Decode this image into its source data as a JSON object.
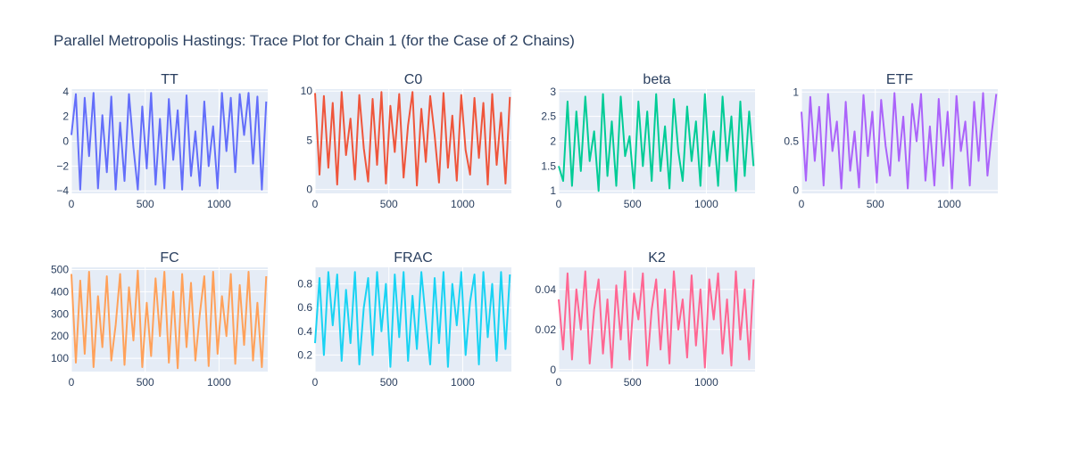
{
  "title": "Parallel Metropolis Hastings: Trace Plot for Chain 1 (for the Case of 2 Chains)",
  "chart_data": [
    {
      "type": "line",
      "title": "TT",
      "color": "#636efa",
      "xlim": [
        0,
        1330
      ],
      "ylim": [
        -4.2,
        4.2
      ],
      "xticks": [
        0,
        500,
        1000
      ],
      "xtick_labels": [
        "0",
        "500",
        "1000"
      ],
      "yticks": [
        -4,
        -2,
        0,
        2,
        4
      ],
      "ytick_labels": [
        "−4",
        "−2",
        "0",
        "2",
        "4"
      ],
      "x": [
        0,
        30,
        60,
        90,
        120,
        150,
        180,
        210,
        240,
        270,
        300,
        330,
        360,
        390,
        420,
        450,
        480,
        510,
        540,
        570,
        600,
        630,
        660,
        690,
        720,
        750,
        780,
        810,
        840,
        870,
        900,
        930,
        960,
        990,
        1020,
        1050,
        1080,
        1110,
        1140,
        1170,
        1200,
        1230,
        1260,
        1290,
        1320
      ],
      "y": [
        0.5,
        3.8,
        -3.9,
        3.5,
        -1.2,
        3.9,
        -3.8,
        2.1,
        -2.5,
        3.6,
        -3.9,
        1.5,
        -3.2,
        3.8,
        -0.5,
        -3.9,
        2.8,
        -2.2,
        3.9,
        -3.5,
        1.8,
        -3.8,
        3.4,
        -1.5,
        2.5,
        -3.9,
        3.7,
        -2.8,
        0.8,
        -3.6,
        3.2,
        -2.0,
        1.2,
        -3.8,
        3.9,
        -0.8,
        3.5,
        -2.5,
        3.8,
        0.5,
        3.9,
        -1.8,
        3.6,
        -3.9,
        3.2
      ]
    },
    {
      "type": "line",
      "title": "C0",
      "color": "#ef553b",
      "xlim": [
        0,
        1330
      ],
      "ylim": [
        -0.4,
        10.2
      ],
      "xticks": [
        0,
        500,
        1000
      ],
      "xtick_labels": [
        "0",
        "500",
        "1000"
      ],
      "yticks": [
        0,
        5,
        10
      ],
      "ytick_labels": [
        "0",
        "5",
        "10"
      ],
      "x": [
        0,
        30,
        60,
        90,
        120,
        150,
        180,
        210,
        240,
        270,
        300,
        330,
        360,
        390,
        420,
        450,
        480,
        510,
        540,
        570,
        600,
        630,
        660,
        690,
        720,
        750,
        780,
        810,
        840,
        870,
        900,
        930,
        960,
        990,
        1020,
        1050,
        1080,
        1110,
        1140,
        1170,
        1200,
        1230,
        1260,
        1290,
        1320
      ],
      "y": [
        9.8,
        1.5,
        9.5,
        2.2,
        8.8,
        0.5,
        9.9,
        3.5,
        7.2,
        1.0,
        9.6,
        4.2,
        0.8,
        9.2,
        2.5,
        9.9,
        0.6,
        8.5,
        3.8,
        9.7,
        1.2,
        6.5,
        9.9,
        0.4,
        8.2,
        2.8,
        9.5,
        5.5,
        0.7,
        9.8,
        2.2,
        7.5,
        0.9,
        9.6,
        4.0,
        1.5,
        9.3,
        3.2,
        8.8,
        0.5,
        9.7,
        2.5,
        7.8,
        0.6,
        9.4
      ]
    },
    {
      "type": "line",
      "title": "beta",
      "color": "#00cc96",
      "xlim": [
        0,
        1330
      ],
      "ylim": [
        0.95,
        3.05
      ],
      "xticks": [
        0,
        500,
        1000
      ],
      "xtick_labels": [
        "0",
        "500",
        "1000"
      ],
      "yticks": [
        1,
        1.5,
        2,
        2.5,
        3
      ],
      "ytick_labels": [
        "1",
        "1.5",
        "2",
        "2.5",
        "3"
      ],
      "x": [
        0,
        30,
        60,
        90,
        120,
        150,
        180,
        210,
        240,
        270,
        300,
        330,
        360,
        390,
        420,
        450,
        480,
        510,
        540,
        570,
        600,
        630,
        660,
        690,
        720,
        750,
        780,
        810,
        840,
        870,
        900,
        930,
        960,
        990,
        1020,
        1050,
        1080,
        1110,
        1140,
        1170,
        1200,
        1230,
        1260,
        1290,
        1320
      ],
      "y": [
        1.5,
        1.2,
        2.8,
        1.1,
        2.6,
        1.4,
        2.9,
        1.6,
        2.2,
        1.0,
        2.95,
        1.3,
        2.4,
        1.1,
        2.9,
        1.7,
        2.1,
        1.05,
        2.8,
        1.5,
        2.6,
        1.2,
        2.95,
        1.4,
        2.3,
        1.05,
        2.85,
        1.8,
        1.2,
        2.7,
        1.6,
        2.4,
        1.1,
        2.95,
        1.5,
        2.2,
        1.1,
        2.9,
        1.6,
        2.5,
        1.0,
        2.8,
        1.3,
        2.6,
        1.5
      ]
    },
    {
      "type": "line",
      "title": "ETF",
      "color": "#ab63fa",
      "xlim": [
        0,
        1330
      ],
      "ylim": [
        -0.03,
        1.03
      ],
      "xticks": [
        0,
        500,
        1000
      ],
      "xtick_labels": [
        "0",
        "500",
        "1000"
      ],
      "yticks": [
        0,
        0.5,
        1
      ],
      "ytick_labels": [
        "0",
        "0.5",
        "1"
      ],
      "x": [
        0,
        30,
        60,
        90,
        120,
        150,
        180,
        210,
        240,
        270,
        300,
        330,
        360,
        390,
        420,
        450,
        480,
        510,
        540,
        570,
        600,
        630,
        660,
        690,
        720,
        750,
        780,
        810,
        840,
        870,
        900,
        930,
        960,
        990,
        1020,
        1050,
        1080,
        1110,
        1140,
        1170,
        1200,
        1230,
        1260,
        1290,
        1320
      ],
      "y": [
        0.8,
        0.1,
        0.95,
        0.3,
        0.85,
        0.05,
        0.98,
        0.4,
        0.7,
        0.02,
        0.9,
        0.2,
        0.6,
        0.03,
        0.97,
        0.35,
        0.8,
        0.08,
        0.92,
        0.45,
        0.15,
        0.99,
        0.3,
        0.75,
        0.02,
        0.88,
        0.5,
        0.98,
        0.1,
        0.65,
        0.05,
        0.93,
        0.25,
        0.8,
        0.02,
        0.96,
        0.4,
        0.7,
        0.05,
        0.9,
        0.3,
        0.99,
        0.15,
        0.6,
        0.98
      ]
    },
    {
      "type": "line",
      "title": "FC",
      "color": "#ffa15a",
      "xlim": [
        0,
        1330
      ],
      "ylim": [
        40,
        510
      ],
      "xticks": [
        0,
        500,
        1000
      ],
      "xtick_labels": [
        "0",
        "500",
        "1000"
      ],
      "yticks": [
        100,
        200,
        300,
        400,
        500
      ],
      "ytick_labels": [
        "100",
        "200",
        "300",
        "400",
        "500"
      ],
      "x": [
        0,
        30,
        60,
        90,
        120,
        150,
        180,
        210,
        240,
        270,
        300,
        330,
        360,
        390,
        420,
        450,
        480,
        510,
        540,
        570,
        600,
        630,
        660,
        690,
        720,
        750,
        780,
        810,
        840,
        870,
        900,
        930,
        960,
        990,
        1020,
        1050,
        1080,
        1110,
        1140,
        1170,
        1200,
        1230,
        1260,
        1290,
        1320
      ],
      "y": [
        480,
        80,
        450,
        120,
        490,
        60,
        380,
        150,
        470,
        90,
        250,
        480,
        70,
        420,
        180,
        495,
        60,
        350,
        110,
        460,
        200,
        490,
        80,
        400,
        55,
        480,
        150,
        440,
        90,
        300,
        470,
        65,
        490,
        120,
        380,
        200,
        480,
        75,
        430,
        160,
        490,
        90,
        350,
        60,
        470
      ]
    },
    {
      "type": "line",
      "title": "FRAC",
      "color": "#19d3f3",
      "xlim": [
        0,
        1330
      ],
      "ylim": [
        0.06,
        0.94
      ],
      "xticks": [
        0,
        500,
        1000
      ],
      "xtick_labels": [
        "0",
        "500",
        "1000"
      ],
      "yticks": [
        0.2,
        0.4,
        0.6,
        0.8
      ],
      "ytick_labels": [
        "0.2",
        "0.4",
        "0.6",
        "0.8"
      ],
      "x": [
        0,
        30,
        60,
        90,
        120,
        150,
        180,
        210,
        240,
        270,
        300,
        330,
        360,
        390,
        420,
        450,
        480,
        510,
        540,
        570,
        600,
        630,
        660,
        690,
        720,
        750,
        780,
        810,
        840,
        870,
        900,
        930,
        960,
        990,
        1020,
        1050,
        1080,
        1110,
        1140,
        1170,
        1200,
        1230,
        1260,
        1290,
        1320
      ],
      "y": [
        0.3,
        0.85,
        0.2,
        0.9,
        0.45,
        0.88,
        0.15,
        0.75,
        0.3,
        0.9,
        0.12,
        0.6,
        0.85,
        0.2,
        0.9,
        0.4,
        0.8,
        0.1,
        0.88,
        0.35,
        0.9,
        0.15,
        0.7,
        0.25,
        0.9,
        0.5,
        0.12,
        0.85,
        0.3,
        0.9,
        0.1,
        0.8,
        0.45,
        0.9,
        0.2,
        0.65,
        0.88,
        0.12,
        0.9,
        0.35,
        0.8,
        0.15,
        0.9,
        0.25,
        0.88
      ]
    },
    {
      "type": "line",
      "title": "K2",
      "color": "#ff6692",
      "xlim": [
        0,
        1330
      ],
      "ylim": [
        -0.001,
        0.051
      ],
      "xticks": [
        0,
        500,
        1000
      ],
      "xtick_labels": [
        "0",
        "500",
        "1000"
      ],
      "yticks": [
        0,
        0.02,
        0.04
      ],
      "ytick_labels": [
        "0",
        "0.02",
        "0.04"
      ],
      "x": [
        0,
        30,
        60,
        90,
        120,
        150,
        180,
        210,
        240,
        270,
        300,
        330,
        360,
        390,
        420,
        450,
        480,
        510,
        540,
        570,
        600,
        630,
        660,
        690,
        720,
        750,
        780,
        810,
        840,
        870,
        900,
        930,
        960,
        990,
        1020,
        1050,
        1080,
        1110,
        1140,
        1170,
        1200,
        1230,
        1260,
        1290,
        1320
      ],
      "y": [
        0.035,
        0.01,
        0.048,
        0.005,
        0.04,
        0.02,
        0.049,
        0.003,
        0.03,
        0.045,
        0.008,
        0.035,
        0.001,
        0.042,
        0.015,
        0.049,
        0.005,
        0.038,
        0.025,
        0.048,
        0.002,
        0.03,
        0.045,
        0.01,
        0.04,
        0.003,
        0.049,
        0.02,
        0.035,
        0.006,
        0.047,
        0.012,
        0.04,
        0.001,
        0.045,
        0.025,
        0.048,
        0.008,
        0.035,
        0.002,
        0.049,
        0.015,
        0.04,
        0.005,
        0.045
      ]
    }
  ]
}
